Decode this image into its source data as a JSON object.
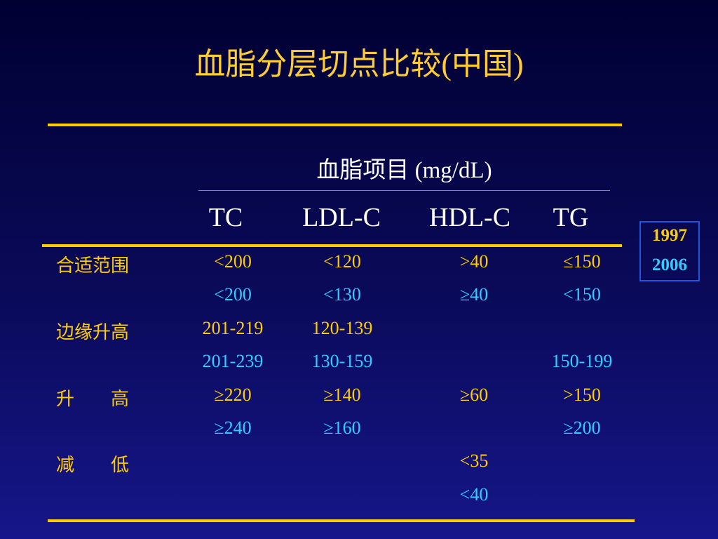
{
  "title": "血脂分层切点比较(中国)",
  "table": {
    "header": "血脂项目 (mg/dL)",
    "columns": [
      "TC",
      "LDL-C",
      "HDL-C",
      "TG"
    ],
    "groups": [
      {
        "label": "合适范围",
        "rows": [
          [
            "<200",
            "<120",
            ">40",
            "≤150"
          ],
          [
            "<200",
            "<130",
            "≥40",
            "<150"
          ]
        ]
      },
      {
        "label": "边缘升高",
        "rows": [
          [
            "201-219",
            "120-139",
            null,
            null
          ],
          [
            "201-239",
            "130-159",
            null,
            "150-199"
          ]
        ]
      },
      {
        "label": "升　　高",
        "rows": [
          [
            "≥220",
            "≥140",
            "≥60",
            ">150"
          ],
          [
            "≥240",
            "≥160",
            null,
            "≥200"
          ]
        ]
      },
      {
        "label": "减　　低",
        "rows": [
          [
            null,
            null,
            "<35",
            null
          ],
          [
            null,
            null,
            "<40",
            null
          ]
        ]
      }
    ]
  },
  "legend": [
    {
      "label": "1997",
      "color": "#ffcc00"
    },
    {
      "label": "2006",
      "color": "#33ccff"
    }
  ]
}
